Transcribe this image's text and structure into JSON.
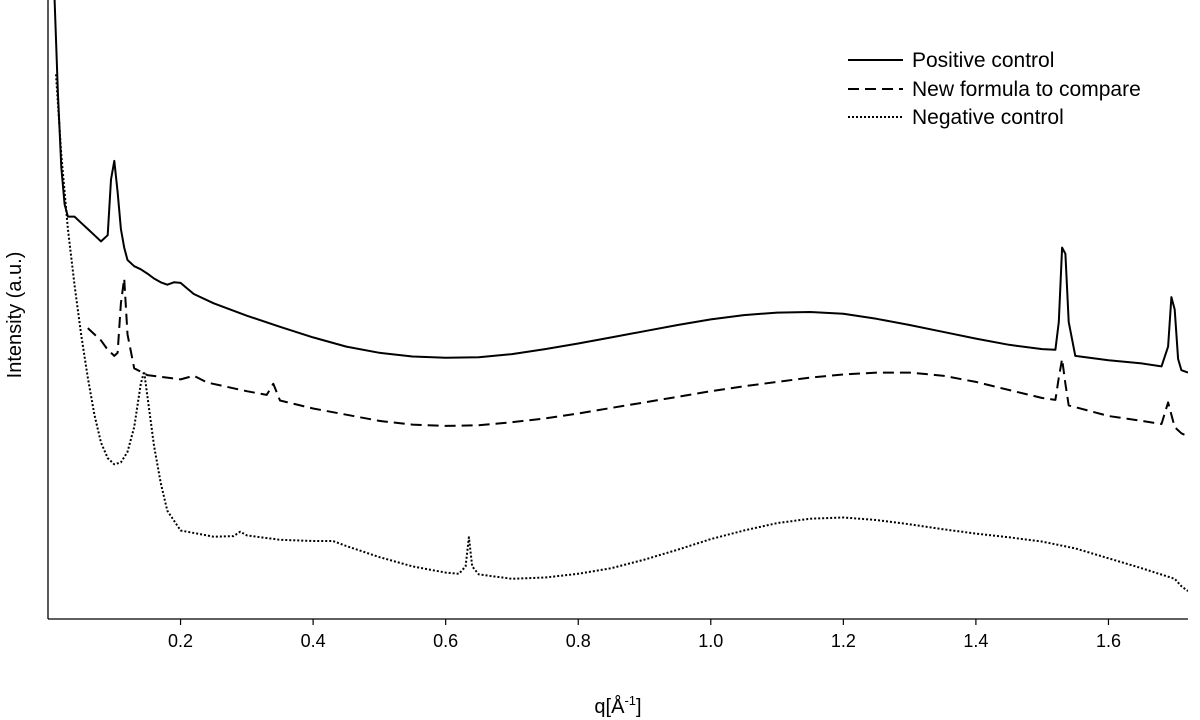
{
  "chart_data": {
    "type": "line",
    "title": "",
    "xlabel": "q[Å",
    "xlabel_sup": "-1",
    "xlabel_close": "]",
    "ylabel": "Intensity (a.u.)",
    "xlim": [
      0.0,
      1.72
    ],
    "ylim": [
      0,
      100
    ],
    "x_ticks": [
      {
        "value": 0.2,
        "label": "0.2"
      },
      {
        "value": 0.4,
        "label": "0.4"
      },
      {
        "value": 0.6,
        "label": "0.6"
      },
      {
        "value": 0.8,
        "label": "0.8"
      },
      {
        "value": 1.0,
        "label": "1.0"
      },
      {
        "value": 1.2,
        "label": "1.2"
      },
      {
        "value": 1.4,
        "label": "1.4"
      },
      {
        "value": 1.6,
        "label": "1.6"
      }
    ],
    "y_ticks_shown": false,
    "grid": false,
    "legend_position": "top-right",
    "series": [
      {
        "name": "Positive control",
        "style": "solid",
        "color": "#000000",
        "points": [
          [
            0.01,
            100
          ],
          [
            0.015,
            85
          ],
          [
            0.02,
            73
          ],
          [
            0.025,
            67
          ],
          [
            0.03,
            65
          ],
          [
            0.035,
            65
          ],
          [
            0.04,
            65
          ],
          [
            0.05,
            64
          ],
          [
            0.06,
            63
          ],
          [
            0.07,
            62
          ],
          [
            0.08,
            61
          ],
          [
            0.09,
            62
          ],
          [
            0.095,
            71
          ],
          [
            0.1,
            74
          ],
          [
            0.105,
            69
          ],
          [
            0.11,
            63
          ],
          [
            0.115,
            60
          ],
          [
            0.12,
            58
          ],
          [
            0.13,
            57
          ],
          [
            0.14,
            56.5
          ],
          [
            0.15,
            55.8
          ],
          [
            0.16,
            55
          ],
          [
            0.17,
            54.4
          ],
          [
            0.18,
            54
          ],
          [
            0.19,
            54.4
          ],
          [
            0.2,
            54.3
          ],
          [
            0.21,
            53.4
          ],
          [
            0.22,
            52.5
          ],
          [
            0.25,
            51
          ],
          [
            0.3,
            49
          ],
          [
            0.35,
            47.2
          ],
          [
            0.4,
            45.5
          ],
          [
            0.45,
            44
          ],
          [
            0.5,
            43
          ],
          [
            0.55,
            42.4
          ],
          [
            0.6,
            42.2
          ],
          [
            0.65,
            42.3
          ],
          [
            0.7,
            42.8
          ],
          [
            0.75,
            43.6
          ],
          [
            0.8,
            44.5
          ],
          [
            0.85,
            45.5
          ],
          [
            0.9,
            46.5
          ],
          [
            0.95,
            47.5
          ],
          [
            1.0,
            48.4
          ],
          [
            1.05,
            49.1
          ],
          [
            1.1,
            49.5
          ],
          [
            1.15,
            49.6
          ],
          [
            1.2,
            49.3
          ],
          [
            1.25,
            48.5
          ],
          [
            1.3,
            47.5
          ],
          [
            1.35,
            46.4
          ],
          [
            1.4,
            45.3
          ],
          [
            1.45,
            44.3
          ],
          [
            1.5,
            43.6
          ],
          [
            1.52,
            43.5
          ],
          [
            1.525,
            48
          ],
          [
            1.53,
            60
          ],
          [
            1.535,
            59
          ],
          [
            1.54,
            48
          ],
          [
            1.55,
            42.5
          ],
          [
            1.6,
            41.8
          ],
          [
            1.65,
            41.3
          ],
          [
            1.68,
            40.8
          ],
          [
            1.69,
            44
          ],
          [
            1.695,
            52
          ],
          [
            1.7,
            50
          ],
          [
            1.705,
            42
          ],
          [
            1.71,
            40.2
          ],
          [
            1.72,
            39.8
          ]
        ]
      },
      {
        "name": "New formula to compare",
        "style": "dashed",
        "color": "#000000",
        "points": [
          [
            0.06,
            47
          ],
          [
            0.08,
            45
          ],
          [
            0.09,
            43.5
          ],
          [
            0.1,
            42.5
          ],
          [
            0.105,
            43
          ],
          [
            0.11,
            51
          ],
          [
            0.115,
            55
          ],
          [
            0.12,
            46
          ],
          [
            0.13,
            40.5
          ],
          [
            0.15,
            39.4
          ],
          [
            0.2,
            38.7
          ],
          [
            0.22,
            39.3
          ],
          [
            0.24,
            38.2
          ],
          [
            0.3,
            36.8
          ],
          [
            0.33,
            36.2
          ],
          [
            0.34,
            38
          ],
          [
            0.35,
            35.3
          ],
          [
            0.4,
            34
          ],
          [
            0.45,
            33
          ],
          [
            0.5,
            32
          ],
          [
            0.55,
            31.4
          ],
          [
            0.6,
            31.2
          ],
          [
            0.65,
            31.3
          ],
          [
            0.7,
            31.8
          ],
          [
            0.75,
            32.4
          ],
          [
            0.8,
            33.2
          ],
          [
            0.85,
            34.1
          ],
          [
            0.9,
            35
          ],
          [
            0.95,
            35.9
          ],
          [
            1.0,
            36.8
          ],
          [
            1.05,
            37.6
          ],
          [
            1.1,
            38.3
          ],
          [
            1.15,
            39
          ],
          [
            1.2,
            39.5
          ],
          [
            1.25,
            39.8
          ],
          [
            1.3,
            39.8
          ],
          [
            1.35,
            39.3
          ],
          [
            1.4,
            38.3
          ],
          [
            1.45,
            37
          ],
          [
            1.5,
            35.7
          ],
          [
            1.52,
            35.4
          ],
          [
            1.525,
            39
          ],
          [
            1.53,
            42
          ],
          [
            1.535,
            38
          ],
          [
            1.54,
            34.5
          ],
          [
            1.6,
            32.8
          ],
          [
            1.65,
            32
          ],
          [
            1.68,
            31.5
          ],
          [
            1.69,
            35
          ],
          [
            1.7,
            31
          ],
          [
            1.71,
            30
          ],
          [
            1.72,
            29.5
          ]
        ]
      },
      {
        "name": "Negative control",
        "style": "dotted",
        "color": "#000000",
        "points": [
          [
            0.012,
            88
          ],
          [
            0.02,
            75
          ],
          [
            0.03,
            63
          ],
          [
            0.04,
            54
          ],
          [
            0.05,
            46
          ],
          [
            0.06,
            39
          ],
          [
            0.07,
            33
          ],
          [
            0.08,
            28.5
          ],
          [
            0.09,
            26
          ],
          [
            0.1,
            25
          ],
          [
            0.11,
            25.3
          ],
          [
            0.12,
            27
          ],
          [
            0.13,
            31
          ],
          [
            0.14,
            38
          ],
          [
            0.145,
            40
          ],
          [
            0.15,
            36
          ],
          [
            0.16,
            28
          ],
          [
            0.17,
            22
          ],
          [
            0.18,
            17.5
          ],
          [
            0.2,
            14.3
          ],
          [
            0.25,
            13.3
          ],
          [
            0.28,
            13.4
          ],
          [
            0.29,
            14.1
          ],
          [
            0.3,
            13.5
          ],
          [
            0.35,
            12.8
          ],
          [
            0.4,
            12.6
          ],
          [
            0.43,
            12.6
          ],
          [
            0.45,
            11.8
          ],
          [
            0.5,
            10
          ],
          [
            0.55,
            8.5
          ],
          [
            0.6,
            7.5
          ],
          [
            0.62,
            7.3
          ],
          [
            0.63,
            8.5
          ],
          [
            0.635,
            13.2
          ],
          [
            0.64,
            8.5
          ],
          [
            0.65,
            7.2
          ],
          [
            0.7,
            6.5
          ],
          [
            0.75,
            6.7
          ],
          [
            0.8,
            7.3
          ],
          [
            0.85,
            8.2
          ],
          [
            0.9,
            9.6
          ],
          [
            0.95,
            11.2
          ],
          [
            1.0,
            12.9
          ],
          [
            1.05,
            14.3
          ],
          [
            1.1,
            15.5
          ],
          [
            1.15,
            16.2
          ],
          [
            1.2,
            16.4
          ],
          [
            1.25,
            16.0
          ],
          [
            1.3,
            15.3
          ],
          [
            1.35,
            14.5
          ],
          [
            1.4,
            13.8
          ],
          [
            1.45,
            13.2
          ],
          [
            1.5,
            12.5
          ],
          [
            1.55,
            11.4
          ],
          [
            1.6,
            9.8
          ],
          [
            1.65,
            8.2
          ],
          [
            1.7,
            6.5
          ],
          [
            1.71,
            5.3
          ],
          [
            1.72,
            4.5
          ]
        ]
      }
    ]
  }
}
